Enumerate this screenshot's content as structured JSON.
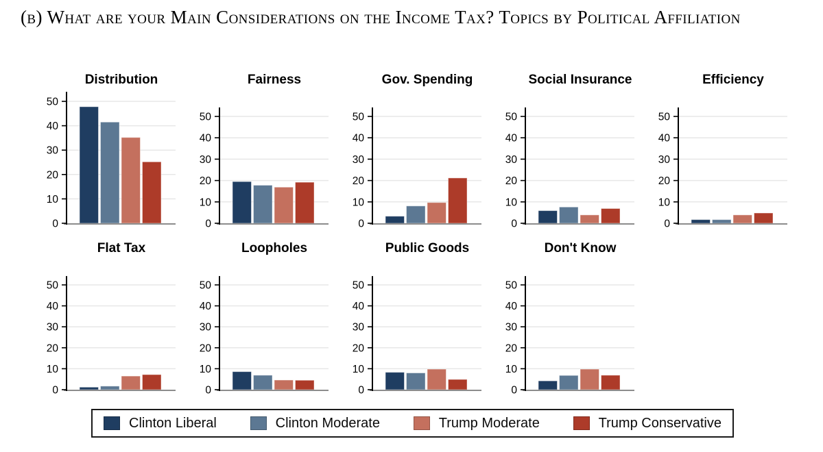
{
  "title": "(b) What are your Main Considerations on the Income Tax? Topics by Political Affiliation",
  "chart_data": {
    "type": "bar",
    "layout": "small-multiples-grid",
    "title": "(b) What are your Main Considerations on the Income Tax? Topics by Political Affiliation",
    "ylabel": "",
    "xlabel": "",
    "ylim": [
      0,
      55
    ],
    "yticks": [
      0,
      10,
      20,
      30,
      40,
      50
    ],
    "grid": true,
    "legend_position": "bottom",
    "series_names": [
      "Clinton Liberal",
      "Clinton Moderate",
      "Trump Moderate",
      "Trump Conservative"
    ],
    "series_colors": [
      "#1f3d61",
      "#5c7893",
      "#c4705e",
      "#ad3b29"
    ],
    "panels": [
      {
        "title": "Distribution",
        "row": 0,
        "col": 0,
        "values": [
          47.8,
          41.5,
          35.2,
          25.2
        ]
      },
      {
        "title": "Fairness",
        "row": 0,
        "col": 1,
        "values": [
          19.5,
          17.8,
          16.9,
          19.2
        ]
      },
      {
        "title": "Gov. Spending",
        "row": 0,
        "col": 2,
        "values": [
          3.3,
          8.1,
          9.7,
          21.2
        ]
      },
      {
        "title": "Social Insurance",
        "row": 0,
        "col": 3,
        "values": [
          5.9,
          7.6,
          3.9,
          6.9
        ]
      },
      {
        "title": "Efficiency",
        "row": 0,
        "col": 4,
        "values": [
          1.7,
          1.7,
          3.9,
          4.8
        ]
      },
      {
        "title": "Flat Tax",
        "row": 1,
        "col": 0,
        "values": [
          1.2,
          1.7,
          6.5,
          7.2
        ]
      },
      {
        "title": "Loopholes",
        "row": 1,
        "col": 1,
        "values": [
          8.6,
          6.9,
          4.6,
          4.5
        ]
      },
      {
        "title": "Public Goods",
        "row": 1,
        "col": 2,
        "values": [
          8.3,
          8.0,
          9.8,
          4.9
        ]
      },
      {
        "title": "Don't Know",
        "row": 1,
        "col": 3,
        "values": [
          4.2,
          6.8,
          9.8,
          6.9
        ]
      }
    ]
  },
  "legend": {
    "items": [
      {
        "label": "Clinton Liberal",
        "color": "#1f3d61"
      },
      {
        "label": "Clinton Moderate",
        "color": "#5c7893"
      },
      {
        "label": "Trump Moderate",
        "color": "#c4705e"
      },
      {
        "label": "Trump Conservative",
        "color": "#ad3b29"
      }
    ]
  },
  "style": {
    "gridline_color": "#e7e7e7",
    "axis_color": "#000000",
    "baseline_color": "#8c8c8c"
  }
}
